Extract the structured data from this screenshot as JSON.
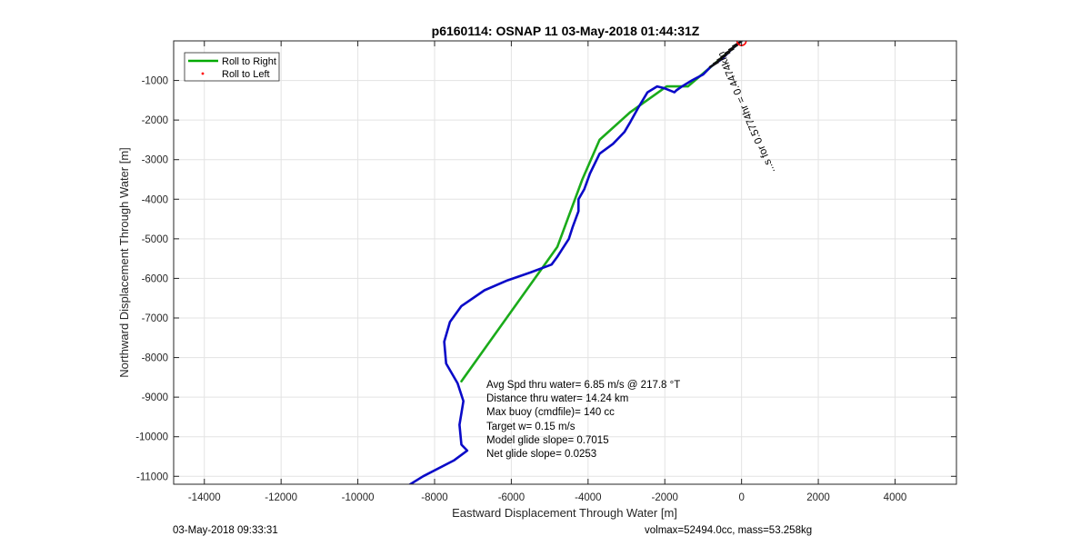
{
  "chart_data": {
    "type": "line",
    "title": "p6160114: OSNAP 11 03-May-2018 01:44:31Z",
    "xlabel": "Eastward Displacement Through Water [m]",
    "ylabel": "Northward Displacement Through Water [m]",
    "xlim": [
      -14800,
      5600
    ],
    "ylim": [
      -11200,
      0
    ],
    "xticks": [
      -14000,
      -12000,
      -10000,
      -8000,
      -6000,
      -4000,
      -2000,
      0,
      2000,
      4000
    ],
    "yticks": [
      -1000,
      -2000,
      -3000,
      -4000,
      -5000,
      -6000,
      -7000,
      -8000,
      -9000,
      -10000,
      -11000
    ],
    "grid": true,
    "legend_position": "top-left",
    "legend": [
      {
        "label": "Roll to Right",
        "color": "#00aa00",
        "marker": "line"
      },
      {
        "label": "Roll to Left",
        "color": "#ff0000",
        "marker": "dot"
      }
    ],
    "series": [
      {
        "name": "Roll to Right",
        "color": "#1aab1a",
        "x": [
          0,
          -1400,
          -1950,
          -2900,
          -3700,
          -4150,
          -4800,
          -7300
        ],
        "y": [
          0,
          -1150,
          -1150,
          -1800,
          -2500,
          -3500,
          -5200,
          -8600
        ]
      },
      {
        "color": "#0a0ac8",
        "x": [
          0,
          -250,
          -500,
          -800,
          -1000,
          -1300,
          -1550,
          -1700,
          -1750,
          -2000,
          -2200,
          -2450,
          -2700,
          -2900,
          -3050,
          -3100,
          -3350,
          -3700,
          -3950,
          -4100,
          -4250,
          -4250,
          -4400,
          -4500,
          -4700,
          -4800,
          -4950,
          -5500,
          -6100,
          -6700,
          -7300,
          -7600,
          -7750,
          -7700,
          -7400,
          -7250,
          -7350,
          -7300,
          -7150,
          -7500,
          -8300,
          -8800
        ],
        "y": [
          0,
          -200,
          -450,
          -650,
          -850,
          -1000,
          -1150,
          -1250,
          -1300,
          -1200,
          -1150,
          -1300,
          -1700,
          -2050,
          -2300,
          -2350,
          -2600,
          -2850,
          -3350,
          -3750,
          -4000,
          -4300,
          -4700,
          -5000,
          -5300,
          -5450,
          -5650,
          -5850,
          -6050,
          -6300,
          -6700,
          -7100,
          -7600,
          -8150,
          -8650,
          -9100,
          -9700,
          -10200,
          -10350,
          -10600,
          -11000,
          -11300
        ]
      }
    ],
    "markers": [
      {
        "name": "start circle",
        "x": 0,
        "y": 0,
        "color": "#ff0000"
      }
    ],
    "annotations": {
      "rotated_label": "...s for 0.5774hr = 0.4474km",
      "stats": [
        "Avg Spd thru water=  6.85 m/s @ 217.8 °T",
        "Distance thru water= 14.24 km",
        "Max buoy (cmdfile)= 140 cc",
        "Target w= 0.15 m/s",
        "Model glide slope= 0.7015",
        "Net glide slope= 0.0253"
      ]
    }
  },
  "footer": {
    "left": "03-May-2018 09:33:31",
    "right": "volmax=52494.0cc, mass=53.258kg"
  }
}
